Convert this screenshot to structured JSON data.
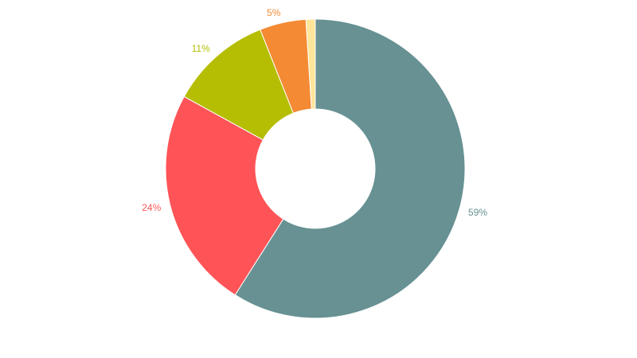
{
  "chart_data": {
    "type": "donut",
    "values": [
      59,
      24,
      11,
      5,
      1
    ],
    "value_labels": [
      "59%",
      "24%",
      "11%",
      "5%",
      null
    ],
    "colors": [
      "#679193",
      "#fe5457",
      "#b5be03",
      "#f48a34",
      "#fde59a"
    ]
  }
}
